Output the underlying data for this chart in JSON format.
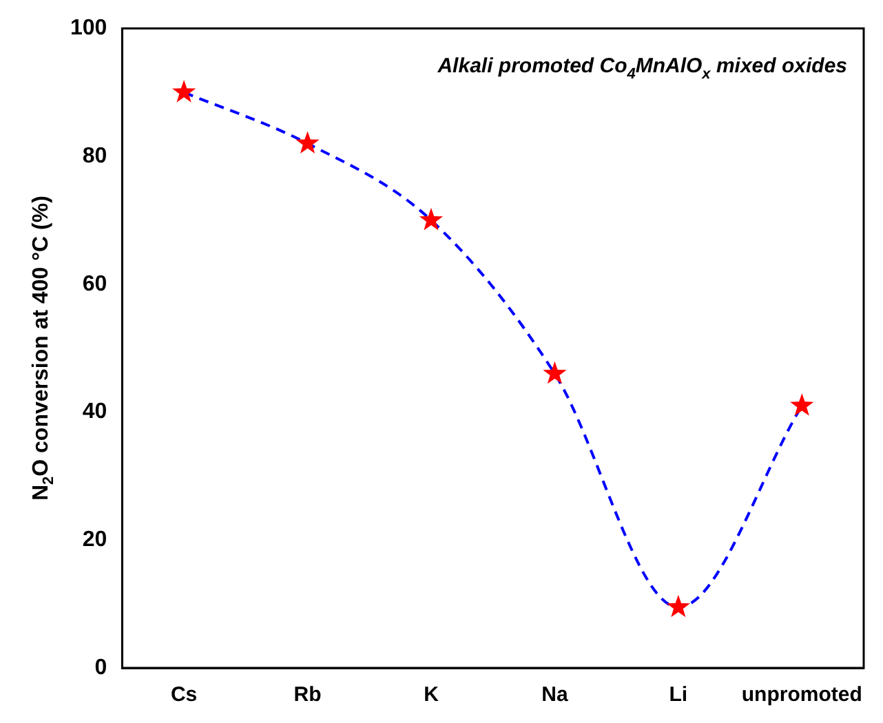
{
  "chart_data": {
    "type": "line",
    "categories": [
      "Cs",
      "Rb",
      "K",
      "Na",
      "Li",
      "unpromoted"
    ],
    "series": [
      {
        "color": "#0000ff",
        "colors": [
          "#ff0000",
          "#ff0000",
          "#ff0000",
          "#ff0000",
          "#ff0000",
          "#ff0000"
        ],
        "values": [
          90,
          82,
          70,
          46,
          9.5,
          41
        ]
      }
    ],
    "ylabel": "N$_{2}$O conversion at 400 °C (%)",
    "annotations": [
      "Alkali promoted Co$_{4}$MnAlO$_{x}$ mixed oxides"
    ],
    "ylim": [
      0,
      100
    ],
    "yticks": [
      0,
      20,
      40,
      60,
      80,
      100
    ],
    "grid": false,
    "legend": false,
    "marker": "star",
    "line_style": "dashed"
  }
}
